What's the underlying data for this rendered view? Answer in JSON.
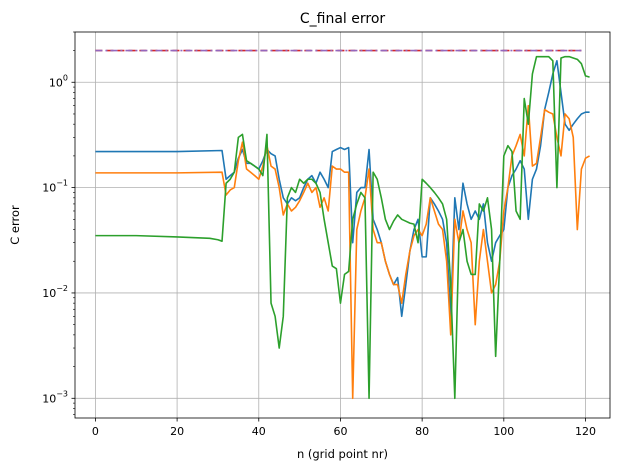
{
  "chart_data": {
    "type": "line",
    "title": "C_final error",
    "xlabel": "n (grid point nr)",
    "ylabel": "C error",
    "xlim": [
      -5,
      126
    ],
    "ylim": [
      0.00065,
      3.0
    ],
    "yscale": "log",
    "grid": true,
    "legend": "none",
    "x_ticks": [
      0,
      20,
      40,
      60,
      80,
      100,
      120
    ],
    "y_ticks": [
      0.001,
      0.01,
      0.1,
      1
    ],
    "y_tick_labels": [
      {
        "base": "10",
        "exp": "−3"
      },
      {
        "base": "10",
        "exp": "−2"
      },
      {
        "base": "10",
        "exp": "−1"
      },
      {
        "base": "10",
        "exp": "0"
      }
    ],
    "series": [
      {
        "color": "#1f77b4",
        "style": "solid",
        "x": [
          0,
          10,
          20,
          31,
          32,
          33,
          34,
          35,
          36,
          37,
          38,
          39,
          40,
          41,
          42,
          43,
          44,
          45,
          46,
          47,
          48,
          49,
          50,
          51,
          52,
          53,
          54,
          55,
          56,
          57,
          58,
          59,
          60,
          61,
          62,
          63,
          64,
          65,
          66,
          67,
          68,
          69,
          70,
          71,
          72,
          73,
          74,
          75,
          76,
          77,
          78,
          79,
          80,
          81,
          82,
          83,
          84,
          85,
          86,
          87,
          88,
          89,
          90,
          91,
          92,
          93,
          94,
          95,
          96,
          97,
          98,
          99,
          100,
          101,
          102,
          103,
          104,
          105,
          106,
          107,
          108,
          109,
          110,
          111,
          112,
          113,
          114,
          115,
          116,
          117,
          118,
          119,
          120,
          121
        ],
        "y": [
          0.22,
          0.22,
          0.22,
          0.225,
          0.12,
          0.13,
          0.14,
          0.19,
          0.23,
          0.17,
          0.17,
          0.16,
          0.15,
          0.18,
          0.23,
          0.21,
          0.2,
          0.12,
          0.08,
          0.07,
          0.08,
          0.075,
          0.08,
          0.1,
          0.12,
          0.13,
          0.11,
          0.14,
          0.12,
          0.1,
          0.22,
          0.23,
          0.24,
          0.23,
          0.24,
          0.03,
          0.09,
          0.1,
          0.1,
          0.23,
          0.05,
          0.04,
          0.03,
          0.02,
          0.015,
          0.012,
          0.014,
          0.006,
          0.012,
          0.025,
          0.04,
          0.05,
          0.022,
          0.022,
          0.08,
          0.07,
          0.06,
          0.05,
          0.03,
          0.006,
          0.08,
          0.04,
          0.11,
          0.07,
          0.05,
          0.06,
          0.05,
          0.07,
          0.03,
          0.02,
          0.03,
          0.035,
          0.04,
          0.1,
          0.13,
          0.15,
          0.18,
          0.15,
          0.05,
          0.12,
          0.15,
          0.25,
          0.55,
          0.8,
          1.2,
          1.6,
          0.8,
          0.4,
          0.35,
          0.4,
          0.45,
          0.5,
          0.52,
          0.52
        ]
      },
      {
        "color": "#ff7f0e",
        "style": "solid",
        "x": [
          0,
          10,
          20,
          31,
          32,
          33,
          34,
          35,
          36,
          37,
          38,
          39,
          40,
          41,
          42,
          43,
          44,
          45,
          46,
          47,
          48,
          49,
          50,
          51,
          52,
          53,
          54,
          55,
          56,
          57,
          58,
          59,
          60,
          61,
          62,
          63,
          64,
          65,
          66,
          67,
          68,
          69,
          70,
          71,
          72,
          73,
          74,
          75,
          76,
          77,
          78,
          79,
          80,
          81,
          82,
          83,
          84,
          85,
          86,
          87,
          88,
          89,
          90,
          91,
          92,
          93,
          94,
          95,
          96,
          97,
          98,
          99,
          100,
          101,
          102,
          103,
          104,
          105,
          106,
          107,
          108,
          109,
          110,
          111,
          112,
          113,
          114,
          115,
          116,
          117,
          118,
          119,
          120,
          121
        ],
        "y": [
          0.138,
          0.138,
          0.138,
          0.14,
          0.085,
          0.095,
          0.1,
          0.18,
          0.27,
          0.15,
          0.14,
          0.13,
          0.12,
          0.16,
          0.25,
          0.16,
          0.15,
          0.1,
          0.055,
          0.07,
          0.06,
          0.065,
          0.075,
          0.09,
          0.11,
          0.09,
          0.1,
          0.065,
          0.08,
          0.06,
          0.16,
          0.15,
          0.15,
          0.14,
          0.14,
          0.001,
          0.04,
          0.06,
          0.08,
          0.15,
          0.04,
          0.03,
          0.03,
          0.02,
          0.015,
          0.012,
          0.012,
          0.008,
          0.015,
          0.025,
          0.035,
          0.04,
          0.035,
          0.045,
          0.08,
          0.06,
          0.045,
          0.04,
          0.02,
          0.004,
          0.05,
          0.03,
          0.06,
          0.04,
          0.03,
          0.005,
          0.02,
          0.04,
          0.02,
          0.01,
          0.012,
          0.02,
          0.06,
          0.1,
          0.2,
          0.25,
          0.32,
          0.2,
          0.6,
          0.16,
          0.17,
          0.3,
          0.55,
          0.52,
          0.5,
          0.3,
          0.2,
          0.5,
          0.45,
          0.3,
          0.04,
          0.15,
          0.19,
          0.2
        ]
      },
      {
        "color": "#2ca02c",
        "style": "solid",
        "x": [
          0,
          10,
          20,
          28,
          30,
          31,
          32,
          33,
          34,
          35,
          36,
          37,
          38,
          39,
          40,
          41,
          42,
          43,
          44,
          45,
          46,
          47,
          48,
          49,
          50,
          51,
          52,
          53,
          54,
          55,
          56,
          57,
          58,
          59,
          60,
          61,
          62,
          63,
          64,
          65,
          66,
          67,
          68,
          69,
          70,
          71,
          72,
          73,
          74,
          75,
          76,
          77,
          78,
          79,
          80,
          81,
          82,
          83,
          84,
          85,
          86,
          87,
          88,
          89,
          90,
          91,
          92,
          93,
          94,
          95,
          96,
          97,
          98,
          99,
          100,
          101,
          102,
          103,
          104,
          105,
          106,
          107,
          108,
          109,
          110,
          111,
          112,
          113,
          114,
          115,
          116,
          117,
          118,
          119,
          120,
          121
        ],
        "y": [
          0.035,
          0.035,
          0.034,
          0.033,
          0.032,
          0.031,
          0.11,
          0.12,
          0.14,
          0.3,
          0.32,
          0.18,
          0.17,
          0.16,
          0.15,
          0.13,
          0.32,
          0.008,
          0.006,
          0.003,
          0.006,
          0.08,
          0.1,
          0.09,
          0.12,
          0.11,
          0.12,
          0.12,
          0.11,
          0.09,
          0.05,
          0.03,
          0.018,
          0.017,
          0.008,
          0.015,
          0.016,
          0.05,
          0.07,
          0.09,
          0.08,
          0.001,
          0.14,
          0.12,
          0.08,
          0.05,
          0.04,
          0.048,
          0.055,
          0.05,
          0.048,
          0.046,
          0.045,
          0.03,
          0.12,
          0.11,
          0.1,
          0.09,
          0.08,
          0.07,
          0.05,
          0.012,
          0.001,
          0.03,
          0.04,
          0.02,
          0.015,
          0.015,
          0.07,
          0.06,
          0.08,
          0.04,
          0.0025,
          0.02,
          0.2,
          0.25,
          0.22,
          0.06,
          0.05,
          0.7,
          0.4,
          1.2,
          1.75,
          1.75,
          1.75,
          1.75,
          1.6,
          0.1,
          1.7,
          1.75,
          1.75,
          1.7,
          1.65,
          1.5,
          1.15,
          1.12
        ]
      },
      {
        "color": "#d62728",
        "style": "dashed",
        "x": [
          0,
          119
        ],
        "y": [
          2.0,
          2.0
        ]
      },
      {
        "color": "#9467bd",
        "style": "dashdot",
        "x": [
          0,
          119
        ],
        "y": [
          2.0,
          2.0
        ]
      }
    ]
  }
}
